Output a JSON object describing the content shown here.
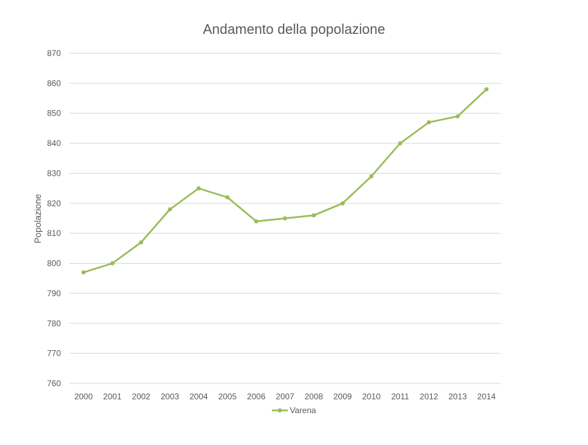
{
  "chart_data": {
    "type": "line",
    "title": "Andamento della popolazione",
    "xlabel": "",
    "ylabel": "Popolazione",
    "ylim": [
      760,
      870
    ],
    "yticks": [
      760,
      770,
      780,
      790,
      800,
      810,
      820,
      830,
      840,
      850,
      860,
      870
    ],
    "categories": [
      "2000",
      "2001",
      "2002",
      "2003",
      "2004",
      "2005",
      "2006",
      "2007",
      "2008",
      "2009",
      "2010",
      "2011",
      "2012",
      "2013",
      "2014"
    ],
    "grid": true,
    "legend": "bottom",
    "series": [
      {
        "name": "Varena",
        "color": "#9BBB59",
        "values": [
          797,
          800,
          807,
          818,
          825,
          822,
          814,
          815,
          816,
          820,
          829,
          840,
          847,
          849,
          858
        ]
      }
    ]
  }
}
